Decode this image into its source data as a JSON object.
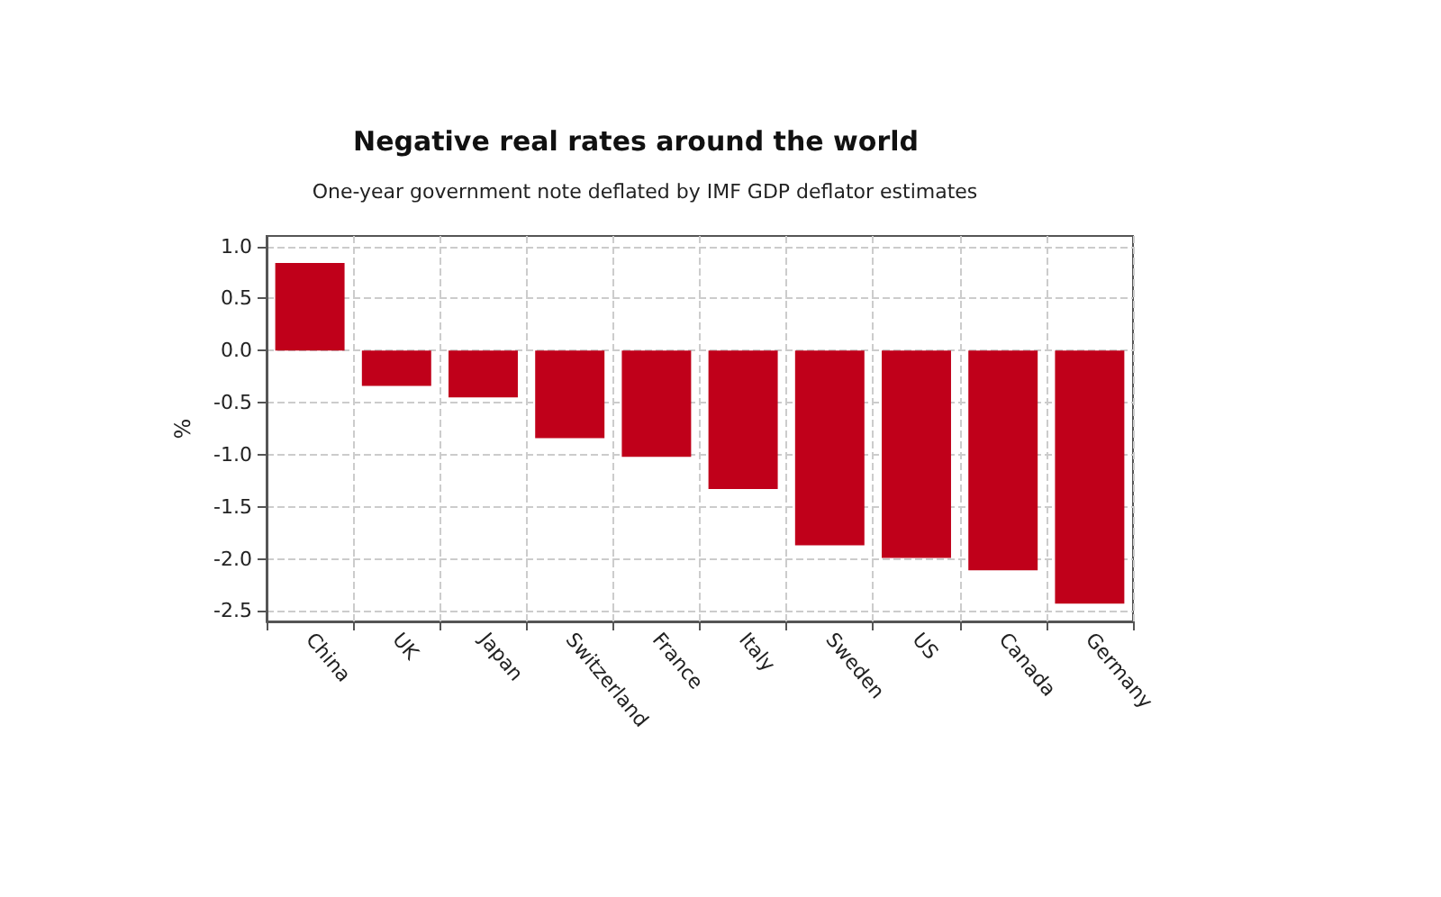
{
  "chart_data": {
    "type": "bar",
    "title": "Negative real rates around the world",
    "subtitle": "One-year government note deflated by IMF GDP deflator estimates",
    "ylabel": "%",
    "categories": [
      "China",
      "UK",
      "Japan",
      "Switzerland",
      "France",
      "Italy",
      "Sweden",
      "US",
      "Canada",
      "Germany"
    ],
    "values": [
      0.84,
      -0.34,
      -0.45,
      -0.84,
      -1.02,
      -1.33,
      -1.87,
      -1.99,
      -2.11,
      -2.43
    ],
    "color": "#c0001a",
    "ylim": [
      -2.6,
      1.1
    ],
    "yticks": [
      -2.5,
      {
        "value": -2,
        "label": "-2.0"
      },
      -1.5,
      {
        "value": -1,
        "label": "-1.0"
      },
      -0.5,
      {
        "value": 0,
        "label": "0.0"
      },
      0.5,
      {
        "value": 1,
        "label": "1.0"
      }
    ],
    "grid": true
  }
}
